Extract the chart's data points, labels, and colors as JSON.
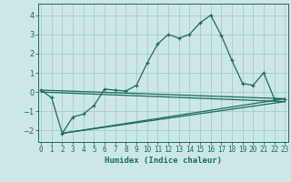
{
  "title": "",
  "xlabel": "Humidex (Indice chaleur)",
  "ylabel": "",
  "bg_color": "#cce8e6",
  "grid_color": "#aacfcc",
  "line_color": "#1a6b5a",
  "x_ticks": [
    0,
    1,
    2,
    3,
    4,
    5,
    6,
    7,
    8,
    9,
    10,
    11,
    12,
    13,
    14,
    15,
    16,
    17,
    18,
    19,
    20,
    21,
    22,
    23
  ],
  "y_ticks": [
    -2,
    -1,
    0,
    1,
    2,
    3,
    4
  ],
  "ylim": [
    -2.6,
    4.6
  ],
  "xlim": [
    -0.3,
    23.3
  ],
  "series1_x": [
    0,
    1,
    2,
    3,
    4,
    5,
    6,
    7,
    8,
    9,
    10,
    11,
    12,
    13,
    14,
    15,
    16,
    17,
    18,
    19,
    20,
    21,
    22,
    23
  ],
  "series1_y": [
    0.1,
    -0.3,
    -2.15,
    -1.3,
    -1.15,
    -0.7,
    0.15,
    0.1,
    0.05,
    0.35,
    1.5,
    2.5,
    3.0,
    2.8,
    3.0,
    3.6,
    4.0,
    2.95,
    1.65,
    0.45,
    0.35,
    1.0,
    -0.35,
    -0.35
  ],
  "series2_x": [
    0,
    23
  ],
  "series2_y": [
    0.1,
    -0.35
  ],
  "series3_x": [
    0,
    23
  ],
  "series3_y": [
    0.0,
    -0.5
  ],
  "series4_x": [
    2,
    23
  ],
  "series4_y": [
    -2.15,
    -0.35
  ],
  "series5_x": [
    2,
    23
  ],
  "series5_y": [
    -2.15,
    -0.5
  ]
}
